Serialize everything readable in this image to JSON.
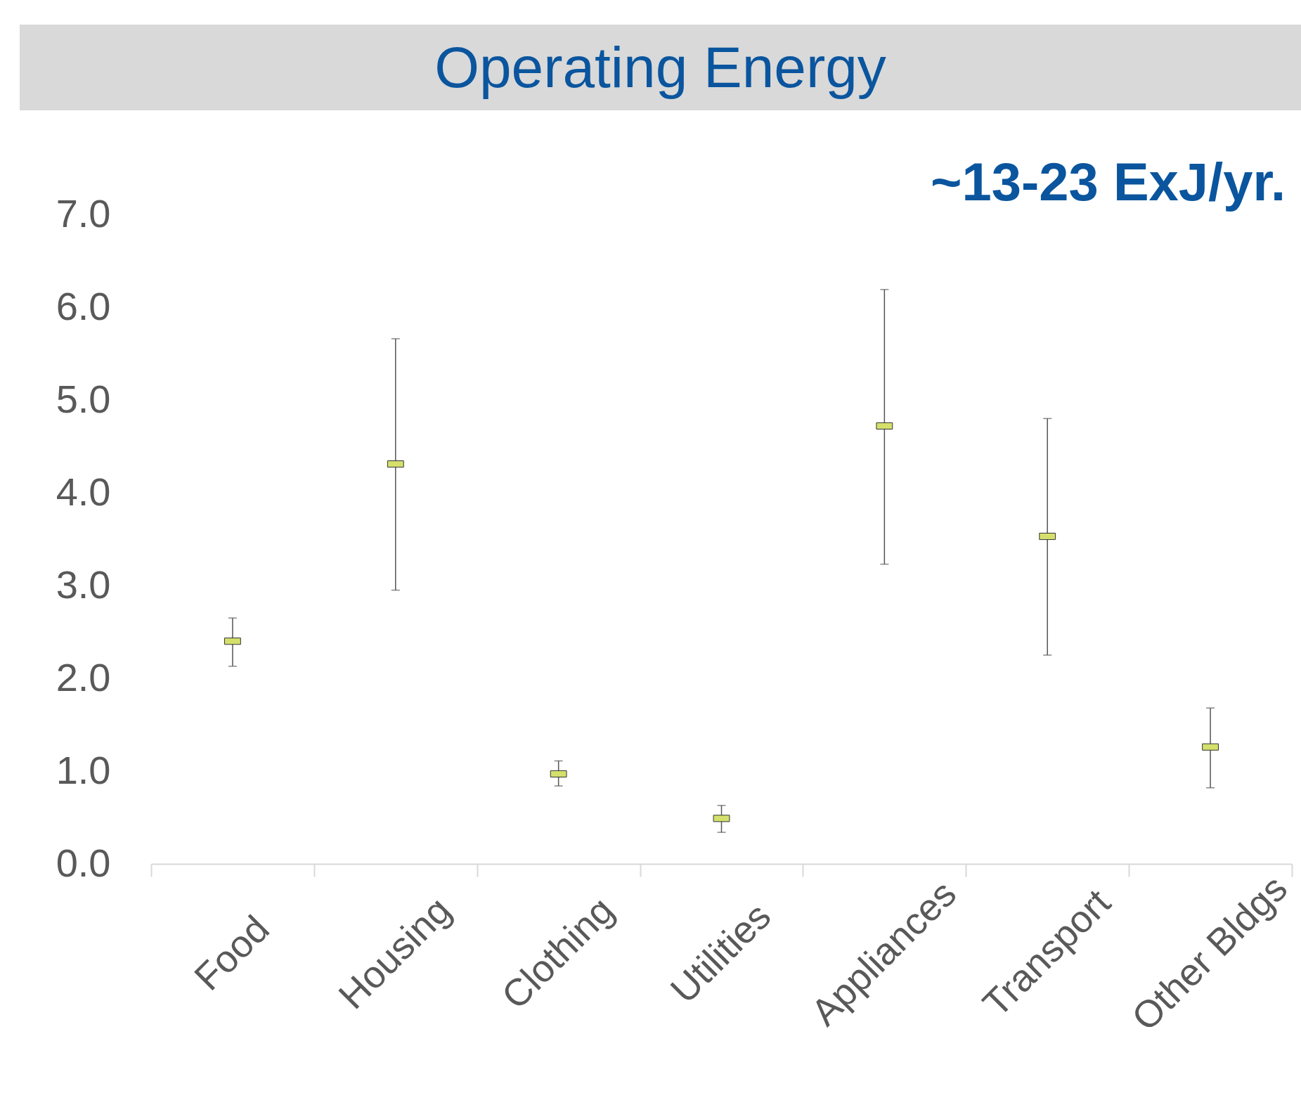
{
  "chart_data": {
    "type": "scatter",
    "title": "Operating Energy",
    "annotations": [
      "~13-23 ExJ/yr."
    ],
    "categories": [
      "Food",
      "Housing",
      "Clothing",
      "Utilities",
      "Appliances",
      "Transport",
      "Other Bldgs"
    ],
    "values": [
      2.4,
      4.31,
      0.97,
      0.49,
      4.72,
      3.53,
      1.26
    ],
    "errors": [
      [
        2.13,
        2.65
      ],
      [
        2.95,
        5.66
      ],
      [
        0.84,
        1.11
      ],
      [
        0.34,
        0.63
      ],
      [
        3.23,
        6.19
      ],
      [
        2.25,
        4.8
      ],
      [
        0.82,
        1.68
      ]
    ],
    "color": "#d4e06b",
    "marker": "square",
    "grid": false,
    "ylim": [
      0,
      7
    ],
    "yticks": [
      {
        "value": 0,
        "label": "0.0"
      },
      {
        "value": 1,
        "label": "1.0"
      },
      {
        "value": 2,
        "label": "2.0"
      },
      {
        "value": 3,
        "label": "3.0"
      },
      {
        "value": 4,
        "label": "4.0"
      },
      {
        "value": 5,
        "label": "5.0"
      },
      {
        "value": 6,
        "label": "6.0"
      },
      {
        "value": 7,
        "label": "7.0"
      }
    ]
  }
}
